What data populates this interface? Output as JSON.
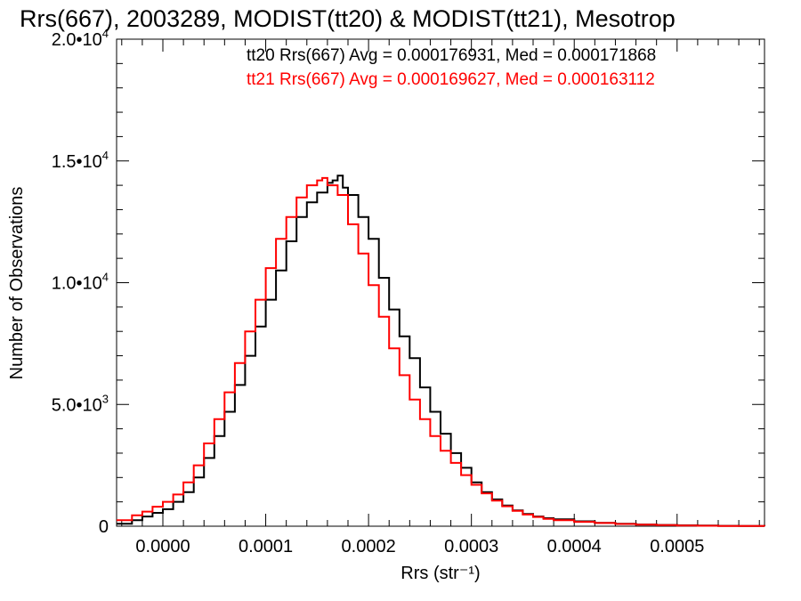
{
  "chart_data": {
    "type": "line",
    "title": "Rrs(667), 2003289, MODIST(tt20) & MODIST(tt21), Mesotrop",
    "xlabel": "Rrs (str⁻¹)",
    "ylabel": "Number of Observations",
    "xlim": [
      -4.5e-05,
      0.000585
    ],
    "ylim": [
      0,
      20000
    ],
    "x_ticks": [
      0.0,
      0.0001,
      0.0002,
      0.0003,
      0.0004,
      0.0005
    ],
    "x_tick_labels": [
      "0.0000",
      "0.0001",
      "0.0002",
      "0.0003",
      "0.0004",
      "0.0005"
    ],
    "y_ticks": [
      0,
      5000,
      10000,
      15000,
      20000
    ],
    "y_tick_labels": [
      {
        "mant": "0",
        "exp": ""
      },
      {
        "mant": "5.0•10",
        "exp": "3"
      },
      {
        "mant": "1.0•10",
        "exp": "4"
      },
      {
        "mant": "1.5•10",
        "exp": "4"
      },
      {
        "mant": "2.0•10",
        "exp": "4"
      }
    ],
    "legend": [
      {
        "text": "tt20 Rrs(667) Avg = 0.000176931, Med = 0.000171868",
        "color": "#000000"
      },
      {
        "text": "tt21 Rrs(667) Avg = 0.000169627, Med = 0.000163112",
        "color": "#ff0000"
      }
    ],
    "legend_position": "top-right",
    "series": [
      {
        "name": "tt20",
        "color": "#000000",
        "x": [
          -4.5e-05,
          -3e-05,
          -2e-05,
          -1e-05,
          0.0,
          1e-05,
          2e-05,
          3e-05,
          4e-05,
          5e-05,
          6e-05,
          7e-05,
          8e-05,
          9e-05,
          0.0001,
          0.00011,
          0.00012,
          0.00013,
          0.00014,
          0.00015,
          0.00016,
          0.000165,
          0.00017,
          0.000175,
          0.00018,
          0.00019,
          0.0002,
          0.00021,
          0.00022,
          0.00023,
          0.00024,
          0.00025,
          0.00026,
          0.00027,
          0.00028,
          0.00029,
          0.0003,
          0.00031,
          0.00032,
          0.00033,
          0.00034,
          0.00035,
          0.00036,
          0.00037,
          0.00038,
          0.0004,
          0.00042,
          0.00044,
          0.00046,
          0.00048,
          0.0005,
          0.00052,
          0.00054,
          0.00056,
          0.000585
        ],
        "y": [
          100,
          250,
          400,
          550,
          700,
          1000,
          1400,
          2000,
          2800,
          3700,
          4700,
          5800,
          7000,
          8200,
          9300,
          10500,
          11700,
          12700,
          13300,
          13700,
          14100,
          14200,
          14400,
          13900,
          13600,
          12700,
          11800,
          10200,
          8900,
          7800,
          6900,
          5700,
          4700,
          3800,
          3000,
          2400,
          1800,
          1400,
          1100,
          850,
          650,
          500,
          400,
          330,
          280,
          200,
          140,
          100,
          70,
          50,
          35,
          25,
          15,
          10,
          5
        ]
      },
      {
        "name": "tt21",
        "color": "#ff0000",
        "x": [
          -4.5e-05,
          -3e-05,
          -2e-05,
          -1e-05,
          0.0,
          1e-05,
          2e-05,
          3e-05,
          4e-05,
          5e-05,
          6e-05,
          7e-05,
          8e-05,
          9e-05,
          0.0001,
          0.00011,
          0.00012,
          0.00013,
          0.00014,
          0.00015,
          0.000155,
          0.00016,
          0.00017,
          0.00018,
          0.00019,
          0.0002,
          0.00021,
          0.00022,
          0.00023,
          0.00024,
          0.00025,
          0.00026,
          0.00027,
          0.00028,
          0.00029,
          0.0003,
          0.00031,
          0.00032,
          0.00033,
          0.00034,
          0.00035,
          0.00036,
          0.00037,
          0.00038,
          0.0004,
          0.00042,
          0.00044,
          0.00046,
          0.00048,
          0.0005,
          0.00052,
          0.00054,
          0.00056,
          0.000585
        ],
        "y": [
          250,
          450,
          600,
          800,
          1000,
          1300,
          1800,
          2500,
          3400,
          4400,
          5500,
          6700,
          8000,
          9300,
          10600,
          11800,
          12700,
          13500,
          14000,
          14200,
          14300,
          14000,
          13600,
          12400,
          11200,
          9900,
          8600,
          7300,
          6200,
          5200,
          4400,
          3700,
          3100,
          2600,
          2100,
          1700,
          1350,
          1050,
          820,
          630,
          480,
          380,
          300,
          250,
          180,
          130,
          90,
          65,
          45,
          30,
          20,
          12,
          8,
          4
        ]
      }
    ]
  }
}
